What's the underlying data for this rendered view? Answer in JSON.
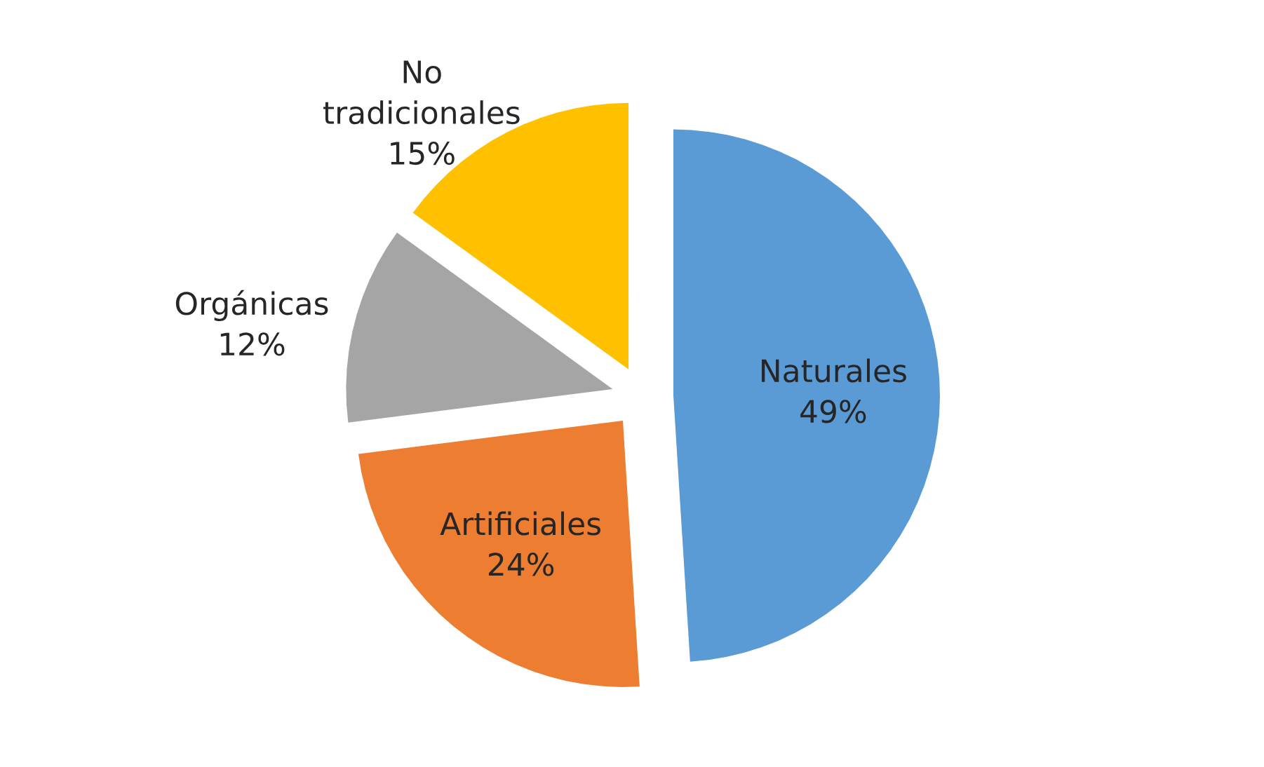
{
  "chart_data": {
    "type": "pie",
    "categories": [
      "Naturales",
      "Artificiales",
      "Orgánicas",
      "No tradicionales"
    ],
    "values": [
      49,
      24,
      12,
      15
    ],
    "colors": [
      "#5b9bd5",
      "#ed7d31",
      "#a5a5a5",
      "#ffc000"
    ],
    "value_labels": [
      "49%",
      "24%",
      "12%",
      "15%"
    ]
  }
}
